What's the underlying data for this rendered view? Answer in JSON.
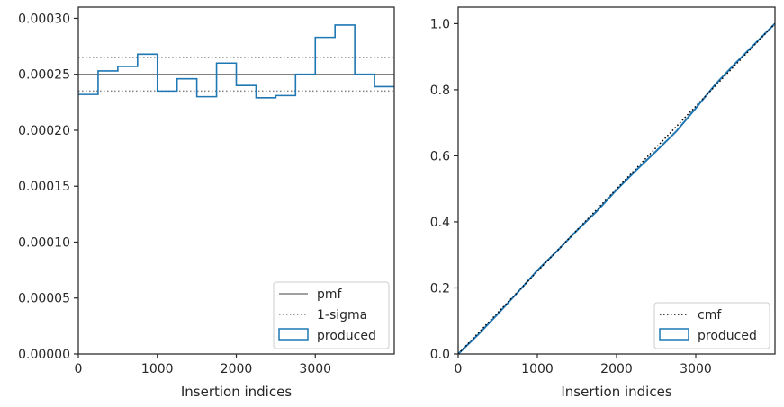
{
  "colors": {
    "produced": "#1f77b4",
    "pmf": "#808080",
    "sigma": "#808080",
    "cmf": "#000000",
    "axes": "#262626"
  },
  "chart_data": [
    {
      "type": "histogram-step",
      "xlabel": "Insertion indices",
      "ylabel": "",
      "xlim": [
        0,
        4000
      ],
      "ylim": [
        0,
        0.00031
      ],
      "x_ticks": [
        0,
        1000,
        2000,
        3000
      ],
      "x_tick_labels": [
        "0",
        "1000",
        "2000",
        "3000"
      ],
      "y_ticks": [
        0,
        5e-05,
        0.0001,
        0.00015,
        0.0002,
        0.00025,
        0.0003
      ],
      "y_tick_labels": [
        "0.00000",
        "0.00005",
        "0.00010",
        "0.00015",
        "0.00020",
        "0.00025",
        "0.00030"
      ],
      "pmf": 0.00025,
      "sigma_lower": 0.000235,
      "sigma_upper": 0.000265,
      "bin_edges": [
        0,
        250,
        500,
        750,
        1000,
        1250,
        1500,
        1750,
        2000,
        2250,
        2500,
        2750,
        3000,
        3250,
        3500,
        3750,
        4000
      ],
      "values": [
        0.000232,
        0.000253,
        0.000257,
        0.000268,
        0.000235,
        0.000246,
        0.00023,
        0.00026,
        0.00024,
        0.000229,
        0.000231,
        0.00025,
        0.000283,
        0.000294,
        0.00025,
        0.000239
      ],
      "legend": [
        "pmf",
        "1-sigma",
        "produced"
      ],
      "legend_position": "lower-right",
      "grid": false
    },
    {
      "type": "line",
      "xlabel": "Insertion indices",
      "ylabel": "",
      "xlim": [
        0,
        4000
      ],
      "ylim": [
        0,
        1.05
      ],
      "x_ticks": [
        0,
        1000,
        2000,
        3000
      ],
      "x_tick_labels": [
        "0",
        "1000",
        "2000",
        "3000"
      ],
      "y_ticks": [
        0,
        0.2,
        0.4,
        0.6,
        0.8,
        1.0
      ],
      "y_tick_labels": [
        "0.0",
        "0.2",
        "0.4",
        "0.6",
        "0.8",
        "1.0"
      ],
      "cmf": {
        "x": [
          0,
          4000
        ],
        "y": [
          0,
          1.0
        ]
      },
      "produced": {
        "x": [
          0,
          250,
          500,
          750,
          1000,
          1250,
          1500,
          1750,
          2000,
          2250,
          2500,
          2750,
          3000,
          3250,
          3500,
          3750,
          4000
        ],
        "y": [
          0,
          0.058,
          0.121,
          0.186,
          0.253,
          0.312,
          0.374,
          0.432,
          0.497,
          0.557,
          0.614,
          0.673,
          0.744,
          0.817,
          0.88,
          0.94,
          1.0
        ]
      },
      "legend": [
        "cmf",
        "produced"
      ],
      "legend_position": "lower-right",
      "grid": false
    }
  ]
}
